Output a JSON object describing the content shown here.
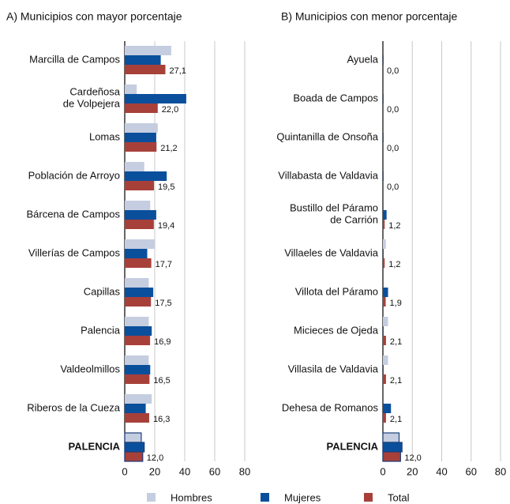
{
  "chart_data": [
    {
      "type": "bar",
      "orientation": "horizontal",
      "title": "A) Municipios con mayor porcentaje",
      "categories": [
        "Marcilla de Campos",
        "Cardeñosa\nde Volpejera",
        "Lomas",
        "Población de Arroyo",
        "Bárcena de Campos",
        "Villerías de Campos",
        "Capillas",
        "Palencia",
        "Valdeolmillos",
        "Riberos de la Cueza",
        "PALENCIA"
      ],
      "series": [
        {
          "name": "Hombres",
          "color": "#c5cde0",
          "values": [
            31,
            8,
            22,
            13,
            17,
            20,
            16,
            16,
            16,
            18,
            11
          ]
        },
        {
          "name": "Mujeres",
          "color": "#0a4f9c",
          "values": [
            24,
            41,
            21,
            28,
            21,
            15,
            19,
            18,
            17,
            14,
            13
          ]
        },
        {
          "name": "Total",
          "color": "#a8403a",
          "values": [
            27.1,
            22.0,
            21.2,
            19.5,
            19.4,
            17.7,
            17.5,
            16.9,
            16.5,
            16.3,
            12.0
          ],
          "value_labels": [
            "27,1",
            "22,0",
            "21,2",
            "19,5",
            "19,4",
            "17,7",
            "17,5",
            "16,9",
            "16,5",
            "16,3",
            "12,0"
          ]
        }
      ],
      "xlim": [
        0,
        80
      ],
      "xticks": [
        0,
        20,
        40,
        60,
        80
      ],
      "grid": true
    },
    {
      "type": "bar",
      "orientation": "horizontal",
      "title": "B) Municipios con menor porcentaje",
      "categories": [
        "Ayuela",
        "Boada de Campos",
        "Quintanilla de Onsoña",
        "Villabasta de Valdavia",
        "Bustillo del Páramo\nde Carrión",
        "Villaeles de Valdavia",
        "Villota del Páramo",
        "Micieces de Ojeda",
        "Villasila de Valdavia",
        "Dehesa de Romanos",
        "PALENCIA"
      ],
      "series": [
        {
          "name": "Hombres",
          "color": "#c5cde0",
          "values": [
            0,
            0,
            0,
            0,
            0,
            2,
            0,
            3.5,
            3.5,
            0,
            11
          ]
        },
        {
          "name": "Mujeres",
          "color": "#0a4f9c",
          "values": [
            0.5,
            0.5,
            0.5,
            0.5,
            2.5,
            0.5,
            3.5,
            0.5,
            0.5,
            5.5,
            13
          ]
        },
        {
          "name": "Total",
          "color": "#a8403a",
          "values": [
            0.0,
            0.0,
            0.0,
            0.0,
            1.2,
            1.2,
            1.9,
            2.1,
            2.1,
            2.1,
            12.0
          ],
          "value_labels": [
            "0,0",
            "0,0",
            "0,0",
            "0,0",
            "1,2",
            "1,2",
            "1,9",
            "2,1",
            "2,1",
            "2,1",
            "12,0"
          ]
        }
      ],
      "xlim": [
        0,
        80
      ],
      "xticks": [
        0,
        20,
        40,
        60,
        80
      ],
      "grid": true
    }
  ]
}
